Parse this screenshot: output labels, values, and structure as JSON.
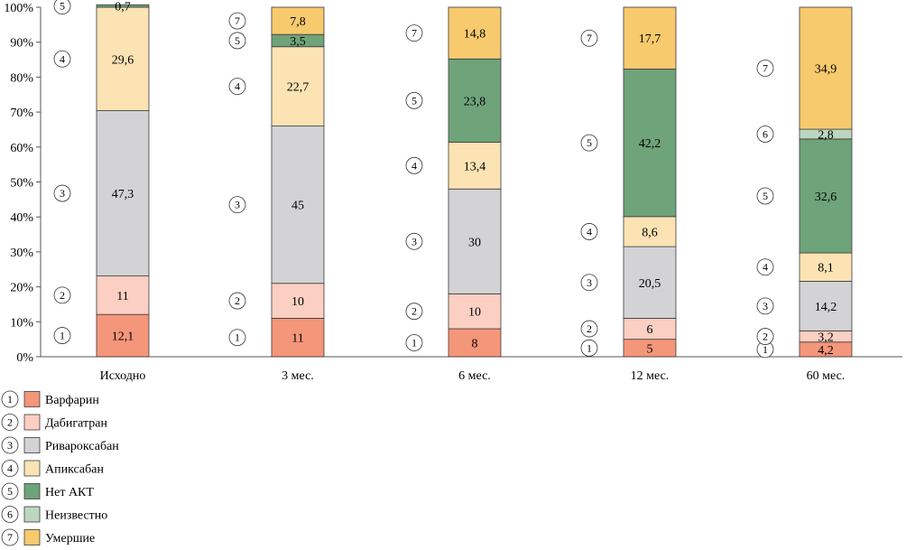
{
  "chart_data": {
    "type": "bar",
    "stacked": true,
    "percent": true,
    "categories": [
      "Исходно",
      "3 мес.",
      "6 мес.",
      "12 мес.",
      "60 мес."
    ],
    "series": [
      {
        "id": "1",
        "name": "Варфарин",
        "color": "#f4967a",
        "values": [
          12.1,
          11,
          8,
          5,
          4.2
        ],
        "labels": [
          "12,1",
          "11",
          "8",
          "5",
          "4,2"
        ]
      },
      {
        "id": "2",
        "name": "Дабигатран",
        "color": "#fbcfc2",
        "values": [
          11,
          10,
          10,
          6,
          3.2
        ],
        "labels": [
          "11",
          "10",
          "10",
          "6",
          "3,2"
        ]
      },
      {
        "id": "3",
        "name": "Ривароксабан",
        "color": "#d3d3d5",
        "values": [
          47.3,
          45,
          30,
          20.5,
          14.2
        ],
        "labels": [
          "47,3",
          "45",
          "30",
          "20,5",
          "14,2"
        ]
      },
      {
        "id": "4",
        "name": "Апиксабан",
        "color": "#fbe3b4",
        "values": [
          29.6,
          22.7,
          13.4,
          8.6,
          8.1
        ],
        "labels": [
          "29,6",
          "22,7",
          "13,4",
          "8,6",
          "8,1"
        ]
      },
      {
        "id": "5",
        "name": "Нет АКТ",
        "color": "#6fa37a",
        "values": [
          0.7,
          3.5,
          23.8,
          42.2,
          32.6
        ],
        "labels": [
          "0,7",
          "3,5",
          "23,8",
          "42,2",
          "32,6"
        ]
      },
      {
        "id": "6",
        "name": "Неизвестно",
        "color": "#bcd6bf",
        "values": [
          0,
          0,
          0,
          0,
          2.8
        ],
        "labels": [
          "",
          "",
          "",
          "",
          "2,8"
        ]
      },
      {
        "id": "7",
        "name": "Умершие",
        "color": "#f7ca6e",
        "values": [
          0,
          7.8,
          14.8,
          17.7,
          34.9
        ],
        "labels": [
          "",
          "7,8",
          "14,8",
          "17,7",
          "34,9"
        ]
      }
    ],
    "yticks": [
      "0%",
      "10%",
      "20%",
      "30%",
      "40%",
      "50%",
      "60%",
      "70%",
      "80%",
      "90%",
      "100%"
    ],
    "ylim": [
      0,
      100
    ],
    "legend_position": "bottom-left"
  }
}
